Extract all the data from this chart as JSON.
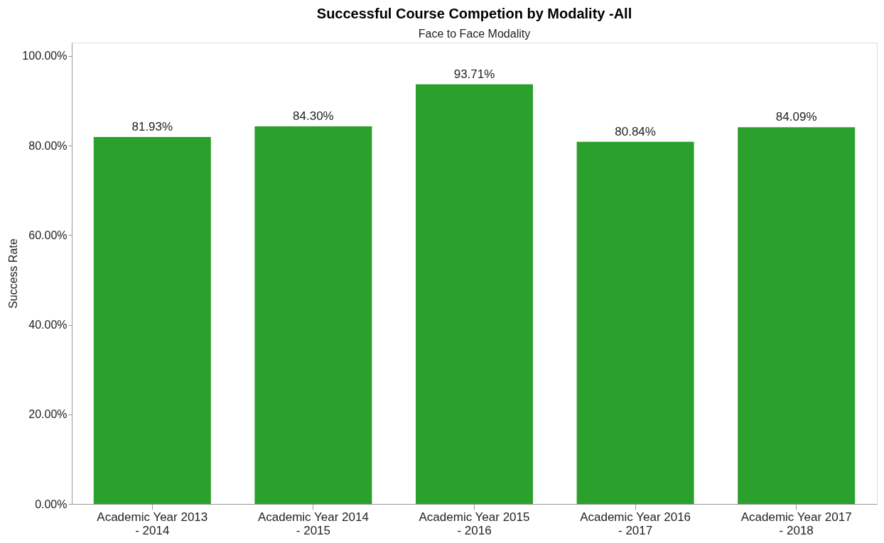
{
  "chart_data": {
    "type": "bar",
    "title": "Successful Course Competion by Modality -All",
    "subtitle": "Face to Face Modality",
    "ylabel": "Success Rate",
    "categories": [
      "Academic Year 2013\n- 2014",
      "Academic Year 2014\n- 2015",
      "Academic Year 2015\n- 2016",
      "Academic Year 2016\n- 2017",
      "Academic Year 2017\n- 2018"
    ],
    "values": [
      81.93,
      84.3,
      93.71,
      80.84,
      84.09
    ],
    "value_labels": [
      "81.93%",
      "84.30%",
      "93.71%",
      "80.84%",
      "84.09%"
    ],
    "color": "#2ca02c",
    "ylim": [
      0,
      103
    ],
    "yticks": [
      {
        "value": 0,
        "label": "0.00%"
      },
      {
        "value": 20,
        "label": "20.00%"
      },
      {
        "value": 40,
        "label": "40.00%"
      },
      {
        "value": 60,
        "label": "60.00%"
      },
      {
        "value": 80,
        "label": "80.00%"
      },
      {
        "value": 100,
        "label": "100.00%"
      }
    ],
    "grid": false
  }
}
